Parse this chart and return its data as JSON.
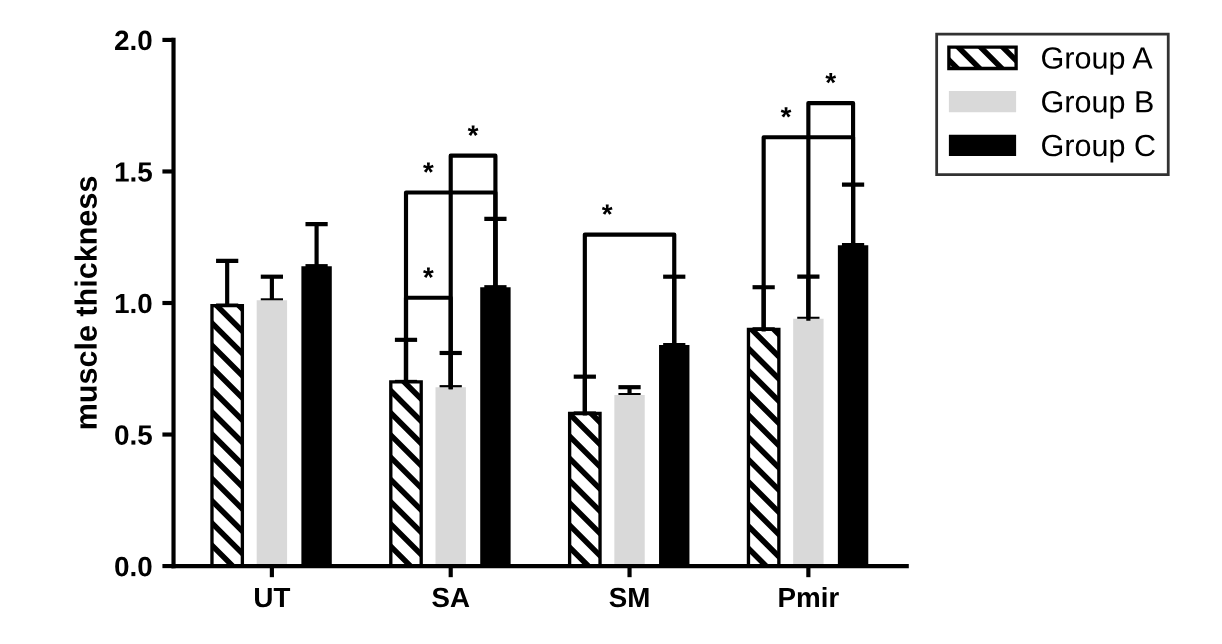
{
  "chart_data": {
    "type": "bar",
    "ylabel": "muscle thickness",
    "categories": [
      "UT",
      "SA",
      "SM",
      "Pmir"
    ],
    "series": [
      {
        "name": "Group A",
        "color": "#000000",
        "values": [
          0.99,
          0.7,
          0.58,
          0.9
        ],
        "errors": [
          [
            0.99,
            1.16
          ],
          [
            0.7,
            0.86
          ],
          [
            0.58,
            0.72
          ],
          [
            0.9,
            1.06
          ]
        ]
      },
      {
        "name": "Group B",
        "color": "#d9d9d9",
        "values": [
          1.01,
          0.68,
          0.65,
          0.94
        ],
        "errors": [
          [
            1.01,
            1.1
          ],
          [
            0.68,
            0.81
          ],
          [
            0.65,
            0.68
          ],
          [
            0.94,
            1.1
          ]
        ]
      },
      {
        "name": "Group C",
        "color": "#000000",
        "values": [
          1.14,
          1.06,
          0.84,
          1.22
        ],
        "errors": [
          [
            1.14,
            1.3
          ],
          [
            1.06,
            1.32
          ],
          [
            0.84,
            1.1
          ],
          [
            1.22,
            1.45
          ]
        ]
      }
    ],
    "annotations": [
      "*",
      "*",
      "*",
      "*",
      "*",
      "*"
    ],
    "ylim": [
      0,
      2.0
    ],
    "yticks": [
      {
        "value": 0,
        "label": "0.0"
      },
      {
        "value": 0.5,
        "label": "0.5"
      },
      {
        "value": 1.0,
        "label": "1.0"
      },
      {
        "value": 1.5,
        "label": "1.5"
      },
      {
        "value": 2.0,
        "label": "2.0"
      }
    ],
    "legend": "top right"
  }
}
